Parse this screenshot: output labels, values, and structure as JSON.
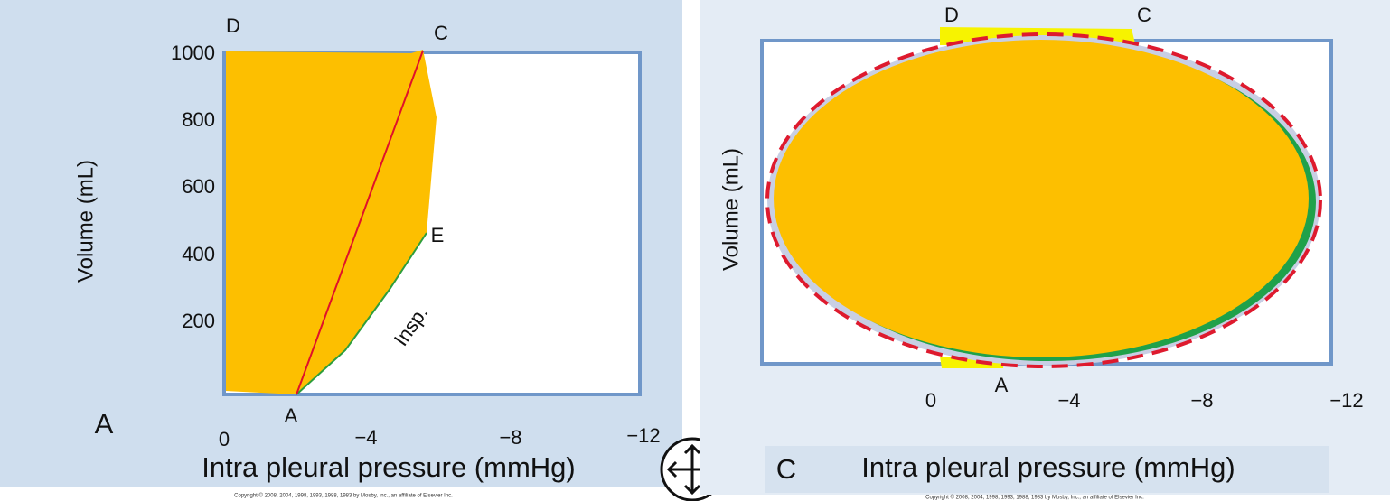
{
  "left_panel": {
    "panel_letter": "A",
    "y_axis_label": "Volume (mL)",
    "x_axis_label": "Intra pleural pressure (mmHg)",
    "y_ticks": [
      "1000",
      "800",
      "600",
      "400",
      "200"
    ],
    "x_ticks": [
      "0",
      "−4",
      "−8",
      "−12"
    ],
    "points": {
      "D": "D",
      "C": "C",
      "E": "E",
      "A": "A"
    },
    "annotation": "Insp.",
    "copyright": "Copyright © 2008, 2004, 1998, 1993, 1988, 1983 by Mosby, Inc., an affiliate of Elsevier Inc."
  },
  "right_panel": {
    "panel_letter": "C",
    "y_axis_label": "Volume (mL)",
    "x_axis_label": "Intra pleural pressure (mmHg)",
    "x_ticks": [
      "0",
      "−4",
      "−8",
      "−12"
    ],
    "points": {
      "D": "D",
      "C": "C",
      "A": "A"
    },
    "copyright": "Copyright © 2008, 2004, 1998, 1993, 1988, 1983 by Mosby, Inc., an affiliate of Elsevier Inc."
  }
}
